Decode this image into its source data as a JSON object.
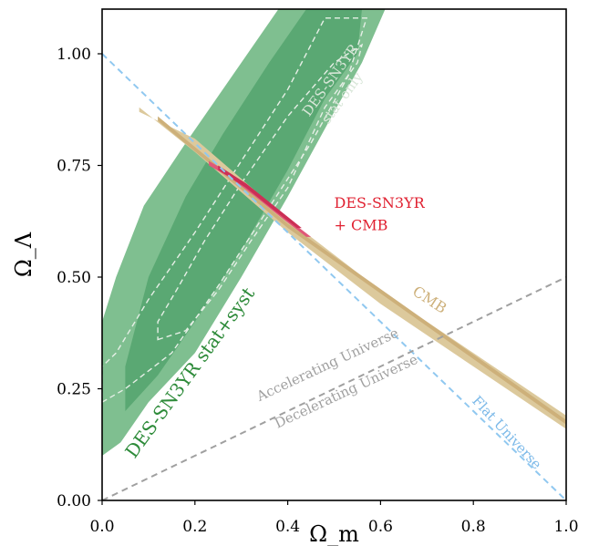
{
  "chart_data": {
    "type": "contour",
    "xlabel": "Ω_m",
    "ylabel": "Ω_Λ",
    "xlim": [
      0.0,
      1.0
    ],
    "ylim": [
      0.0,
      1.1
    ],
    "x_ticks": [
      0.0,
      0.2,
      0.4,
      0.6,
      0.8,
      1.0
    ],
    "x_tick_labels": [
      "0.0",
      "0.2",
      "0.4",
      "0.6",
      "0.8",
      "1.0"
    ],
    "y_ticks": [
      0.0,
      0.25,
      0.5,
      0.75,
      1.0
    ],
    "y_tick_labels": [
      "0.00",
      "0.25",
      "0.50",
      "0.75",
      "1.00"
    ],
    "grid": false,
    "colors": {
      "sn_outer": "#7fbf90",
      "sn_inner": "#5aa873",
      "sn_stat_line": "#e6efe6",
      "cmb_outer": "#dcc99c",
      "cmb_inner": "#cdb07a",
      "joint_outer": "#e05878",
      "joint_inner": "#cc2f55",
      "flat_line": "#90c8f0",
      "accel_line": "#a0a0a0",
      "sn_label": "#2e8b3a",
      "joint_label": "#e02030",
      "cmb_label": "#cdb07a",
      "stat_label": "#d8e6d8",
      "flat_label": "#7ab8e8",
      "accel_label": "#a0a0a0"
    },
    "series": [
      {
        "name": "DES-SN3YR stat+syst",
        "kind": "filled_contour",
        "outer": [
          [
            0.0,
            0.1
          ],
          [
            0.04,
            0.13
          ],
          [
            0.1,
            0.22
          ],
          [
            0.2,
            0.33
          ],
          [
            0.3,
            0.5
          ],
          [
            0.4,
            0.68
          ],
          [
            0.5,
            0.87
          ],
          [
            0.56,
            0.98
          ],
          [
            0.61,
            1.1
          ],
          [
            0.38,
            1.1
          ],
          [
            0.28,
            0.95
          ],
          [
            0.18,
            0.8
          ],
          [
            0.09,
            0.66
          ],
          [
            0.03,
            0.5
          ],
          [
            0.0,
            0.4
          ]
        ],
        "inner": [
          [
            0.05,
            0.2
          ],
          [
            0.12,
            0.28
          ],
          [
            0.2,
            0.4
          ],
          [
            0.3,
            0.56
          ],
          [
            0.4,
            0.74
          ],
          [
            0.48,
            0.9
          ],
          [
            0.55,
            1.0
          ],
          [
            0.56,
            1.1
          ],
          [
            0.44,
            1.1
          ],
          [
            0.36,
            0.98
          ],
          [
            0.26,
            0.82
          ],
          [
            0.18,
            0.68
          ],
          [
            0.1,
            0.5
          ],
          [
            0.05,
            0.3
          ]
        ]
      },
      {
        "name": "DES-SN3YR stat only",
        "kind": "dashed_contour",
        "outer": [
          [
            0.0,
            0.22
          ],
          [
            0.05,
            0.25
          ],
          [
            0.15,
            0.33
          ],
          [
            0.25,
            0.48
          ],
          [
            0.35,
            0.64
          ],
          [
            0.45,
            0.8
          ],
          [
            0.53,
            0.95
          ],
          [
            0.57,
            1.08
          ],
          [
            0.48,
            1.08
          ],
          [
            0.4,
            0.92
          ],
          [
            0.3,
            0.76
          ],
          [
            0.2,
            0.6
          ],
          [
            0.1,
            0.45
          ],
          [
            0.03,
            0.33
          ],
          [
            0.0,
            0.3
          ]
        ],
        "inner": [
          [
            0.12,
            0.36
          ],
          [
            0.18,
            0.38
          ],
          [
            0.25,
            0.47
          ],
          [
            0.32,
            0.58
          ],
          [
            0.4,
            0.7
          ],
          [
            0.48,
            0.88
          ],
          [
            0.55,
            0.98
          ],
          [
            0.56,
            1.02
          ],
          [
            0.5,
            0.98
          ],
          [
            0.4,
            0.86
          ],
          [
            0.3,
            0.71
          ],
          [
            0.22,
            0.58
          ],
          [
            0.16,
            0.47
          ],
          [
            0.12,
            0.4
          ]
        ]
      },
      {
        "name": "CMB",
        "kind": "band",
        "outer": [
          [
            0.08,
            0.88
          ],
          [
            0.2,
            0.78
          ],
          [
            0.4,
            0.6
          ],
          [
            0.6,
            0.44
          ],
          [
            0.8,
            0.3
          ],
          [
            1.0,
            0.16
          ],
          [
            1.0,
            0.19
          ],
          [
            0.8,
            0.33
          ],
          [
            0.6,
            0.47
          ],
          [
            0.4,
            0.63
          ],
          [
            0.2,
            0.81
          ],
          [
            0.08,
            0.87
          ]
        ],
        "inner": [
          [
            0.12,
            0.85
          ],
          [
            0.4,
            0.61
          ],
          [
            0.7,
            0.39
          ],
          [
            1.0,
            0.17
          ],
          [
            1.0,
            0.18
          ],
          [
            0.7,
            0.4
          ],
          [
            0.4,
            0.62
          ],
          [
            0.12,
            0.86
          ]
        ]
      },
      {
        "name": "DES-SN3YR + CMB",
        "kind": "filled_contour",
        "outer": [
          [
            0.23,
            0.75
          ],
          [
            0.28,
            0.72
          ],
          [
            0.33,
            0.68
          ],
          [
            0.39,
            0.63
          ],
          [
            0.44,
            0.59
          ],
          [
            0.45,
            0.59
          ],
          [
            0.4,
            0.63
          ],
          [
            0.34,
            0.68
          ],
          [
            0.28,
            0.73
          ],
          [
            0.23,
            0.76
          ]
        ],
        "inner": [
          [
            0.25,
            0.74
          ],
          [
            0.31,
            0.7
          ],
          [
            0.37,
            0.65
          ],
          [
            0.42,
            0.61
          ],
          [
            0.43,
            0.61
          ],
          [
            0.37,
            0.66
          ],
          [
            0.31,
            0.71
          ],
          [
            0.25,
            0.75
          ]
        ]
      },
      {
        "name": "Flat Universe",
        "kind": "dashed_line",
        "points": [
          [
            0.0,
            1.0
          ],
          [
            1.0,
            0.0
          ]
        ]
      },
      {
        "name": "Accelerating Universe / Decelerating Universe",
        "kind": "dashed_line",
        "points": [
          [
            0.0,
            0.0
          ],
          [
            1.0,
            0.5
          ]
        ]
      }
    ],
    "annotations": [
      {
        "text": "DES-SN3YR",
        "x": 0.5,
        "y": 0.935,
        "rotation": -54,
        "color": "stat_label",
        "size": 15
      },
      {
        "text": "stat only",
        "x": 0.525,
        "y": 0.895,
        "rotation": -54,
        "color": "stat_label",
        "size": 15
      },
      {
        "text": "DES-SN3YR",
        "x": 0.5,
        "y": 0.655,
        "rotation": 0,
        "color": "joint_label",
        "size": 16,
        "anchor": "start"
      },
      {
        "text": "+ CMB",
        "x": 0.5,
        "y": 0.605,
        "rotation": 0,
        "color": "joint_label",
        "size": 16,
        "anchor": "start"
      },
      {
        "text": "CMB",
        "x": 0.7,
        "y": 0.44,
        "rotation": 33,
        "color": "cmb_label",
        "size": 16
      },
      {
        "text": "DES-SN3YR stat+syst",
        "x": 0.2,
        "y": 0.278,
        "rotation": -54,
        "color": "sn_label",
        "size": 20
      },
      {
        "text": "Accelerating Universe",
        "x": 0.49,
        "y": 0.295,
        "rotation": -25,
        "color": "accel_label",
        "size": 15
      },
      {
        "text": "Decelerating Universe",
        "x": 0.53,
        "y": 0.235,
        "rotation": -25,
        "color": "accel_label",
        "size": 15
      },
      {
        "text": "Flat Universe",
        "x": 0.865,
        "y": 0.145,
        "rotation": 47,
        "color": "flat_label",
        "size": 15
      }
    ]
  }
}
